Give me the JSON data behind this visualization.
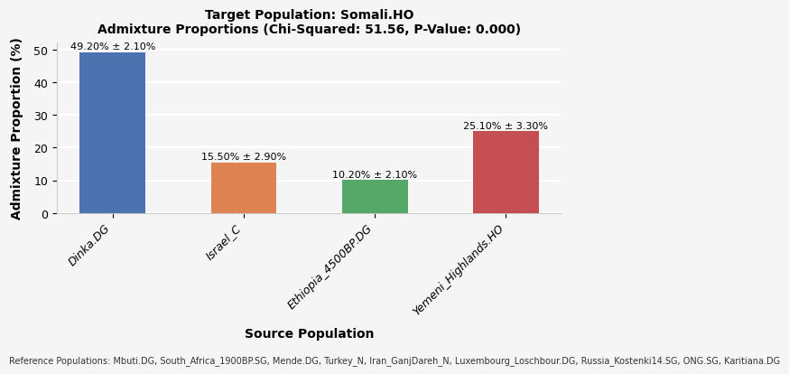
{
  "title_line1": "Target Population: Somali.HO",
  "title_line2": "Admixture Proportions (Chi-Squared: 51.56, P-Value: 0.000)",
  "xlabel": "Source Population",
  "ylabel": "Admixture Proportion (%)",
  "categories": [
    "Dinka.DG",
    "Israel_C",
    "Ethiopia_4500BP.DG",
    "Yemeni_Highlands.HO"
  ],
  "values": [
    49.2,
    15.5,
    10.2,
    25.1
  ],
  "errors": [
    2.1,
    2.9,
    2.1,
    3.3
  ],
  "bar_colors": [
    "#4C72B0",
    "#DD8452",
    "#55A868",
    "#C44E52"
  ],
  "ylim": [
    0,
    52
  ],
  "yticks": [
    0,
    10,
    20,
    30,
    40,
    50
  ],
  "background_color": "#f5f5f5",
  "grid_color": "#ffffff",
  "footnote": "Reference Populations: Mbuti.DG, South_Africa_1900BP.SG, Mende.DG, Turkey_N, Iran_GanjDareh_N, Luxembourg_Loschbour.DG, Russia_Kostenki14.SG, ONG.SG, Karitiana.DG",
  "bar_label_fontsize": 8,
  "title_fontsize": 10,
  "axis_label_fontsize": 10,
  "tick_fontsize": 9,
  "footnote_fontsize": 7
}
